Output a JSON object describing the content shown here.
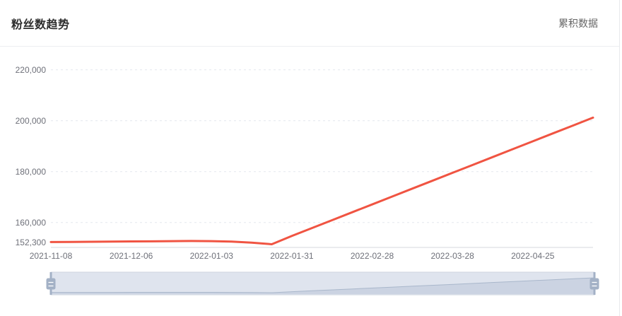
{
  "header": {
    "title": "粉丝数趋势",
    "mode_label": "累积数据"
  },
  "colors": {
    "series_line": "#f05442",
    "axis_label": "#6e7079",
    "grid_line": "#e4e7ed",
    "axis_line": "#d4d7de",
    "divider": "#eceef1",
    "card_border": "#e8eaed",
    "slider_filler": "#dfe4ee",
    "slider_border": "#ccd3df",
    "slider_shadow_line": "#a9b7cb",
    "slider_shadow_area": "#cbd3e2",
    "slider_handle": "#a3b1c6"
  },
  "chart_data": {
    "type": "line",
    "title": "粉丝数趋势",
    "legend_position": "top-right",
    "grid": "horizontal-dashed",
    "xlabel": "",
    "ylabel": "",
    "ylim": [
      150200,
      223000
    ],
    "x": [
      "2021-11-08",
      "2021-11-15",
      "2021-11-22",
      "2021-11-29",
      "2021-12-06",
      "2021-12-13",
      "2021-12-20",
      "2021-12-27",
      "2022-01-03",
      "2022-01-10",
      "2022-01-17",
      "2022-01-24",
      "2022-01-31",
      "2022-02-07",
      "2022-02-14",
      "2022-02-21",
      "2022-02-28",
      "2022-03-07",
      "2022-03-14",
      "2022-03-21",
      "2022-03-28",
      "2022-04-04",
      "2022-04-11",
      "2022-04-18",
      "2022-04-25",
      "2022-05-02",
      "2022-05-09",
      "2022-05-16"
    ],
    "series": [
      {
        "name": "累积数据",
        "values": [
          152300,
          152350,
          152420,
          152480,
          152550,
          152600,
          152680,
          152720,
          152680,
          152500,
          152050,
          151450,
          154700,
          157800,
          160900,
          164000,
          167100,
          170200,
          173300,
          176400,
          179500,
          182600,
          185700,
          188800,
          191900,
          195000,
          198100,
          201200
        ]
      }
    ],
    "x_tick_labels": [
      {
        "index": 0,
        "label": "2021-11-08"
      },
      {
        "index": 4,
        "label": "2021-12-06"
      },
      {
        "index": 8,
        "label": "2022-01-03"
      },
      {
        "index": 12,
        "label": "2022-01-31"
      },
      {
        "index": 16,
        "label": "2022-02-28"
      },
      {
        "index": 20,
        "label": "2022-03-28"
      },
      {
        "index": 24,
        "label": "2022-04-25"
      }
    ],
    "y_ticks": [
      {
        "value": 152300,
        "label": "152,300",
        "grid": false
      },
      {
        "value": 160000,
        "label": "160,000",
        "grid": true
      },
      {
        "value": 180000,
        "label": "180,000",
        "grid": true
      },
      {
        "value": 200000,
        "label": "200,000",
        "grid": true
      },
      {
        "value": 220000,
        "label": "220,000",
        "grid": true
      }
    ]
  }
}
